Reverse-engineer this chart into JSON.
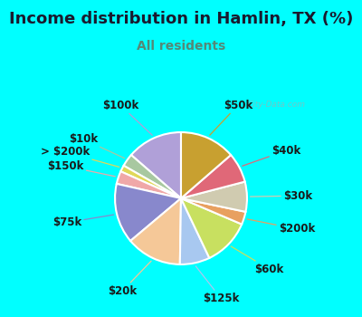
{
  "title": "Income distribution in Hamlin, TX (%)",
  "subtitle": "All residents",
  "bg_color": "#00FFFF",
  "chart_bg_top": "#e8f8f4",
  "chart_bg_bottom": "#d0ede5",
  "watermark": "City-Data.com",
  "labels": [
    "$100k",
    "$10k",
    "> $200k",
    "$150k",
    "$75k",
    "$20k",
    "$125k",
    "$60k",
    "$200k",
    "$30k",
    "$40k",
    "$50k"
  ],
  "values": [
    13,
    3,
    1.5,
    3,
    14,
    13,
    7,
    11,
    3,
    7,
    7,
    13
  ],
  "colors": [
    "#b0a0d8",
    "#a8c8a0",
    "#e0d858",
    "#f0a8a8",
    "#8888cc",
    "#f5c898",
    "#a8c8f0",
    "#c8e060",
    "#e8a060",
    "#d0cbb0",
    "#e06878",
    "#c8a030"
  ],
  "line_colors": [
    "#b0a0d8",
    "#a8c8a0",
    "#e0d858",
    "#f0a8a8",
    "#8888cc",
    "#f5c898",
    "#a8c8f0",
    "#c8e060",
    "#e8a060",
    "#d0cbb0",
    "#e06878",
    "#c8a030"
  ],
  "label_fontsize": 8.5,
  "title_fontsize": 13,
  "subtitle_fontsize": 10,
  "start_angle": 90
}
